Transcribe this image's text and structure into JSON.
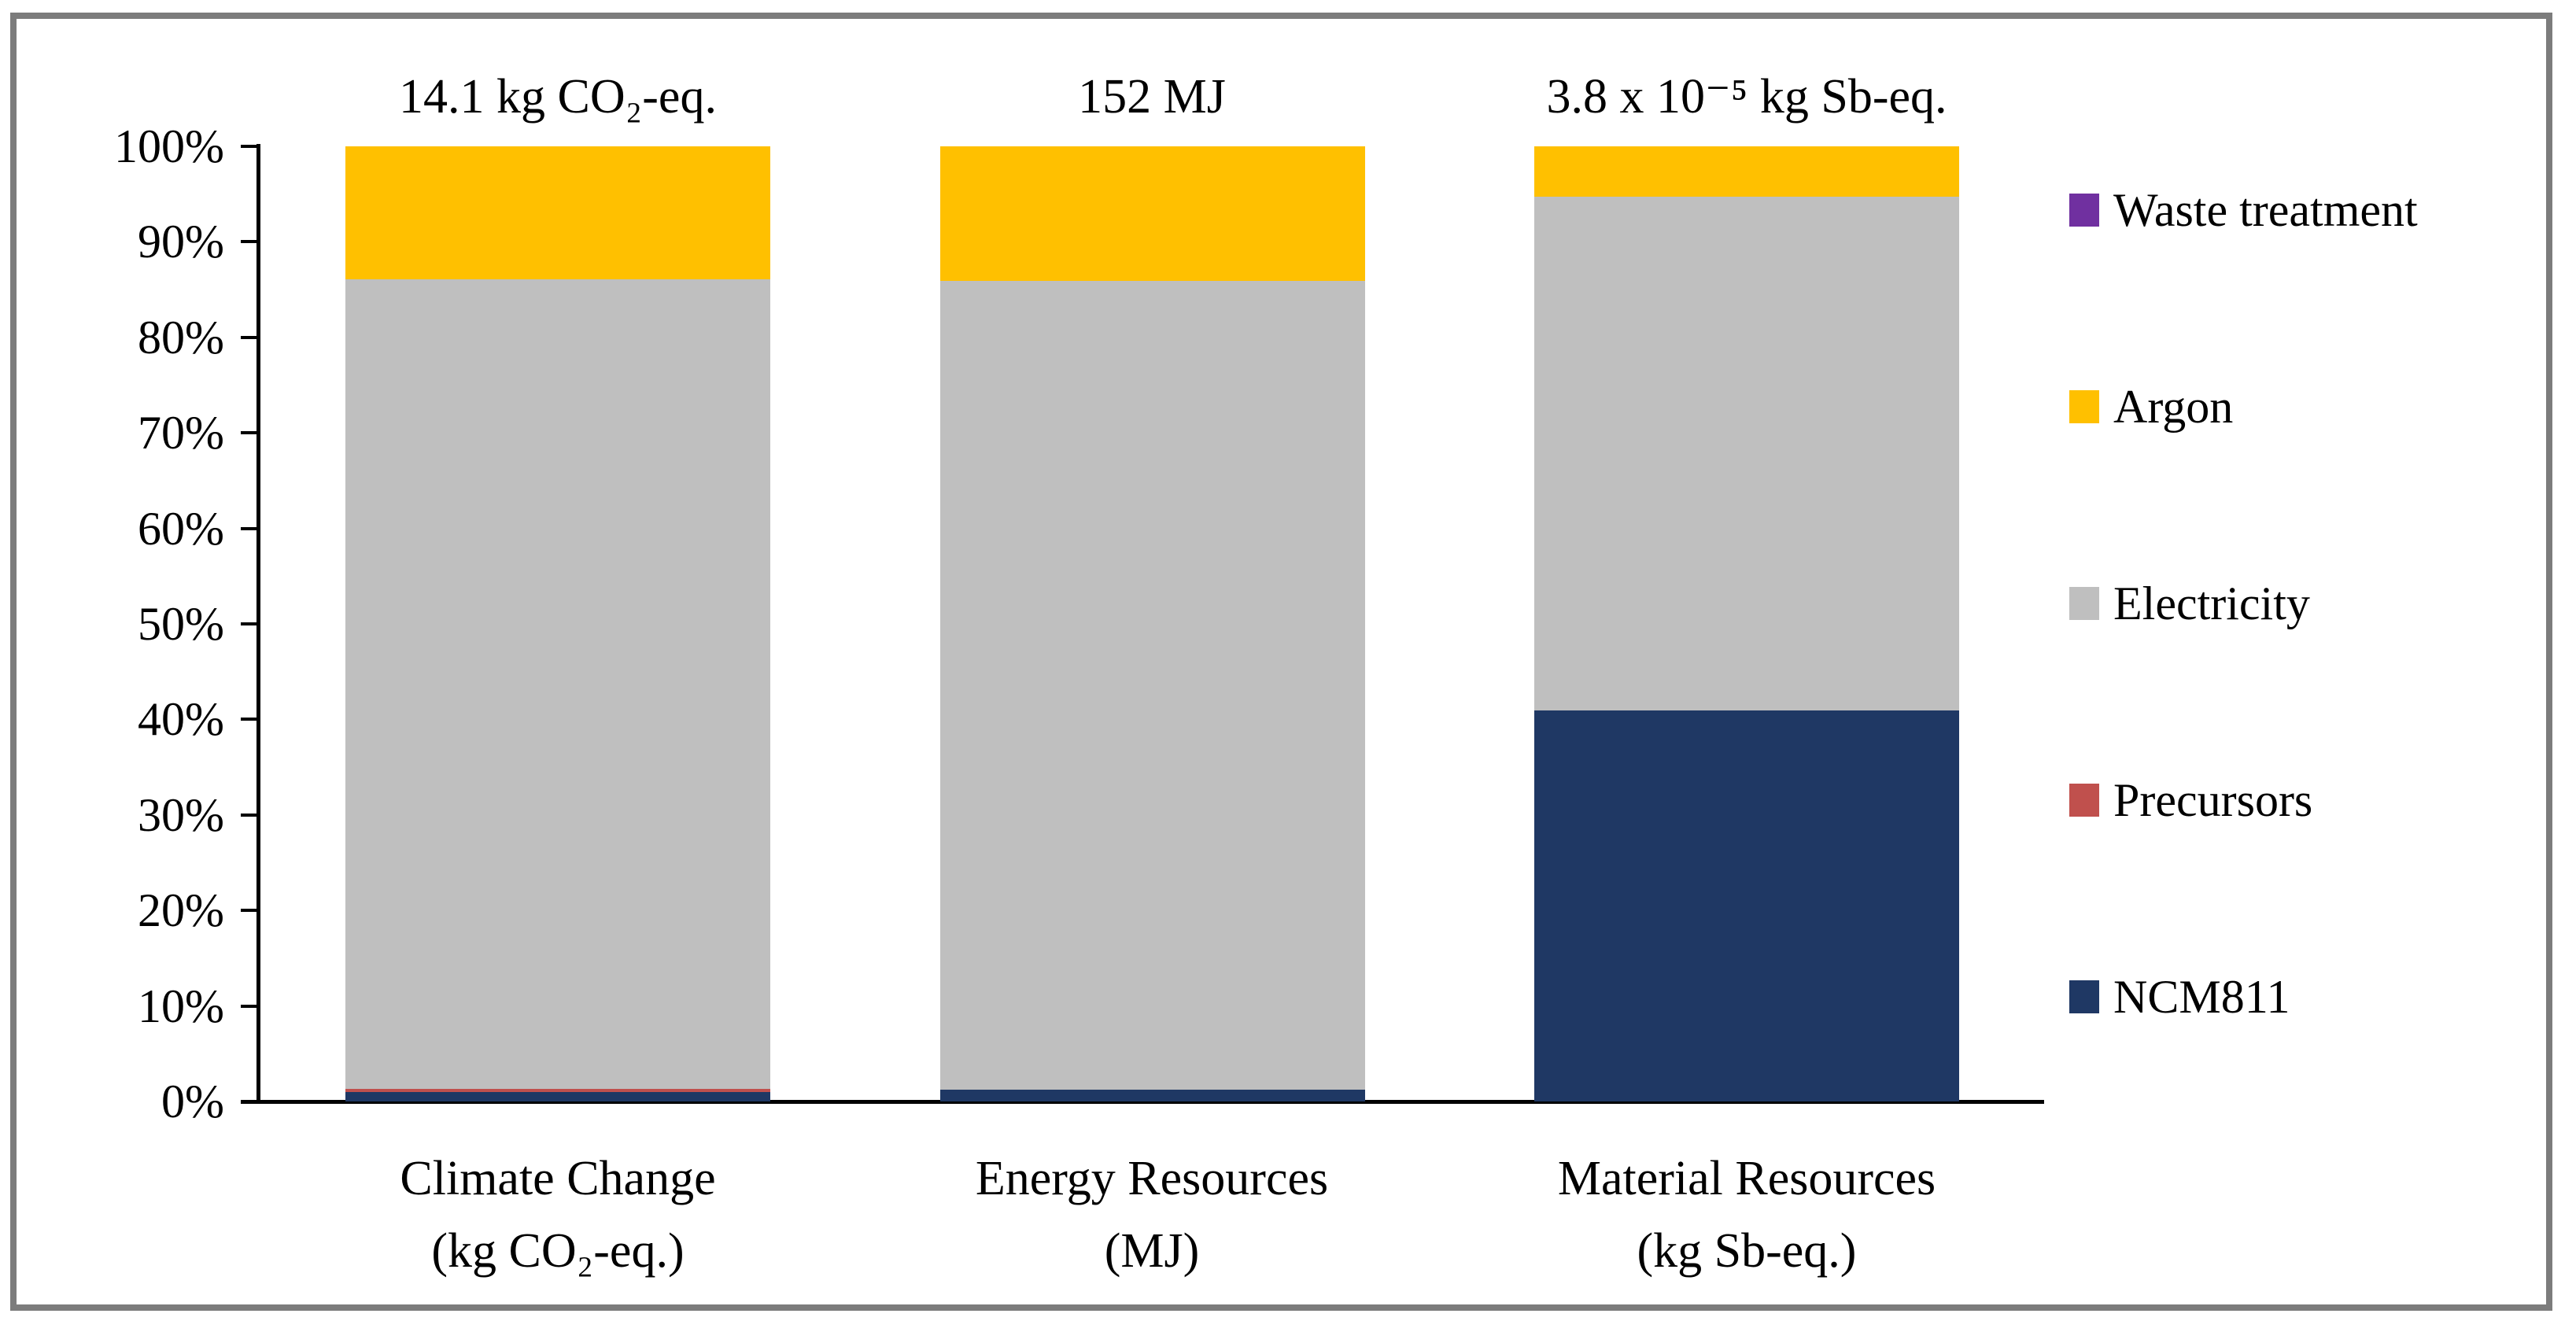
{
  "figure": {
    "background_color": "#FFFFFF",
    "border_color": "#7C7C7C",
    "axis_color": "#000000",
    "text_color": "#000000"
  },
  "chart_data": {
    "type": "bar",
    "stacked": true,
    "unit": "percent of total per impact category",
    "gridlines": false,
    "y_axis": {
      "min": 0,
      "max": 100,
      "tick_step": 10,
      "tick_labels": [
        "0%",
        "10%",
        "20%",
        "30%",
        "40%",
        "50%",
        "60%",
        "70%",
        "80%",
        "90%",
        "100%"
      ]
    },
    "categories": [
      {
        "name": "Climate Change",
        "axis_label_lines": [
          "Climate Change",
          "(kg CO₂-eq.)"
        ],
        "total_label": "14.1 kg CO₂-eq."
      },
      {
        "name": "Energy Resources",
        "axis_label_lines": [
          "Energy Resources",
          "(MJ)"
        ],
        "total_label": "152 MJ"
      },
      {
        "name": "Material Resources",
        "axis_label_lines": [
          "Material Resources",
          "(kg Sb-eq.)"
        ],
        "total_label": "3.8 x 10⁻⁵ kg Sb-eq."
      }
    ],
    "series": [
      {
        "name": "NCM811",
        "color": "#1F3864",
        "values": [
          1.0,
          1.2,
          40.9
        ]
      },
      {
        "name": "Precursors",
        "color": "#C0504D",
        "values": [
          0.3,
          0.0,
          0.0
        ]
      },
      {
        "name": "Electricity",
        "color": "#BFBFBF",
        "values": [
          84.8,
          84.7,
          53.8
        ]
      },
      {
        "name": "Argon",
        "color": "#FFC000",
        "values": [
          13.9,
          14.1,
          5.3
        ]
      },
      {
        "name": "Waste treatment",
        "color": "#7030A0",
        "values": [
          0.0,
          0.0,
          0.0
        ]
      }
    ],
    "legend": {
      "position": "right",
      "order_top_to_bottom": [
        "Waste treatment",
        "Argon",
        "Electricity",
        "Precursors",
        "NCM811"
      ]
    }
  }
}
